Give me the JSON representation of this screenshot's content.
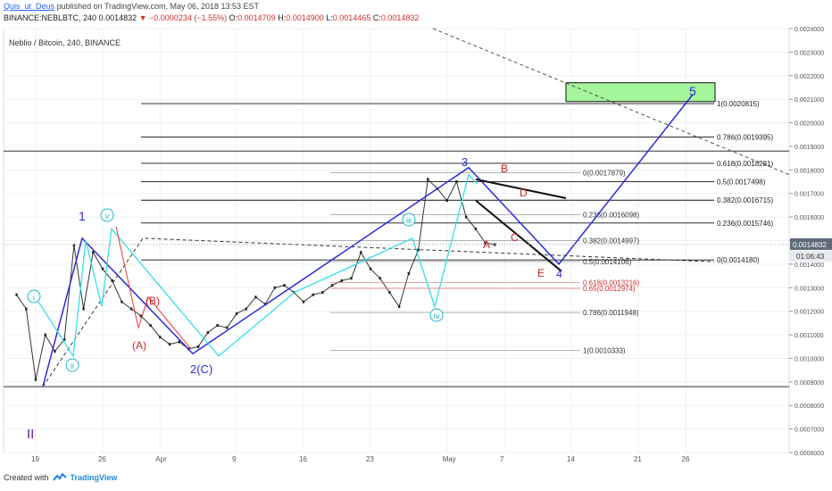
{
  "header": {
    "author": "Quis_ut_Deus",
    "published_text": "published on TradingView.com, May 06, 2018 13:53 EST",
    "symbol_line": "BINANCE:NEBLBTC, 240",
    "last": "0.0014832",
    "change": "▼ −0.0000234 (−1.55%)",
    "o_label": "O:",
    "o": "0.0014709",
    "h_label": "H:",
    "h": "0.0014900",
    "l_label": "L:",
    "l": "0.0014465",
    "c_label": "C:",
    "c": "0.0014832"
  },
  "footer": {
    "created_with": "Created with",
    "brand": "TradingView"
  },
  "colors": {
    "blue": "#2b2bd9",
    "cyan": "#35e0e8",
    "red": "#c62828",
    "black": "#111111",
    "green_zone": "#a5f59a",
    "grid": "#eef0f3"
  },
  "chart_data": {
    "type": "line",
    "title": "Neblio / Bitcoin, 240, BINANCE",
    "x_tick_labels": [
      "19",
      "26",
      "Apr",
      "9",
      "16",
      "23",
      "May",
      "7",
      "14",
      "21",
      "26"
    ],
    "y_tick_labels": [
      "0.0006000",
      "0.0007000",
      "0.0008000",
      "0.0009000",
      "0.0010000",
      "0.0011000",
      "0.0012000",
      "0.0013000",
      "0.0014000",
      "0.0015000",
      "0.0016000",
      "0.0017000",
      "0.0018000",
      "0.0019000",
      "0.0020000",
      "0.0021000",
      "0.0022000",
      "0.0023000",
      "0.0024000"
    ],
    "ylim": [
      0.0006,
      0.0024
    ],
    "last_price": "0.0014832",
    "countdown": "01:06:43",
    "price_series": [
      {
        "date": "Mar 17",
        "close": 0.00127
      },
      {
        "date": "Mar 18",
        "close": 0.00121
      },
      {
        "date": "Mar 19",
        "close": 0.00091
      },
      {
        "date": "Mar 20",
        "close": 0.0011
      },
      {
        "date": "Mar 21",
        "close": 0.00103
      },
      {
        "date": "Mar 22",
        "close": 0.00108
      },
      {
        "date": "Mar 23",
        "close": 0.00148
      },
      {
        "date": "Mar 24",
        "close": 0.00121
      },
      {
        "date": "Mar 25",
        "close": 0.00145
      },
      {
        "date": "Mar 26",
        "close": 0.00138
      },
      {
        "date": "Mar 27",
        "close": 0.00133
      },
      {
        "date": "Mar 28",
        "close": 0.00124
      },
      {
        "date": "Mar 29",
        "close": 0.00121
      },
      {
        "date": "Mar 30",
        "close": 0.00118
      },
      {
        "date": "Mar 31",
        "close": 0.00114
      },
      {
        "date": "Apr 1",
        "close": 0.00109
      },
      {
        "date": "Apr 2",
        "close": 0.00106
      },
      {
        "date": "Apr 3",
        "close": 0.00107
      },
      {
        "date": "Apr 4",
        "close": 0.00104
      },
      {
        "date": "Apr 5",
        "close": 0.00105
      },
      {
        "date": "Apr 6",
        "close": 0.00111
      },
      {
        "date": "Apr 7",
        "close": 0.00114
      },
      {
        "date": "Apr 8",
        "close": 0.00113
      },
      {
        "date": "Apr 9",
        "close": 0.00119
      },
      {
        "date": "Apr 10",
        "close": 0.00121
      },
      {
        "date": "Apr 11",
        "close": 0.00126
      },
      {
        "date": "Apr 12",
        "close": 0.00123
      },
      {
        "date": "Apr 13",
        "close": 0.0013
      },
      {
        "date": "Apr 14",
        "close": 0.00131
      },
      {
        "date": "Apr 15",
        "close": 0.00128
      },
      {
        "date": "Apr 16",
        "close": 0.00124
      },
      {
        "date": "Apr 17",
        "close": 0.00127
      },
      {
        "date": "Apr 18",
        "close": 0.00128
      },
      {
        "date": "Apr 19",
        "close": 0.00131
      },
      {
        "date": "Apr 20",
        "close": 0.00133
      },
      {
        "date": "Apr 21",
        "close": 0.00134
      },
      {
        "date": "Apr 22",
        "close": 0.00145
      },
      {
        "date": "Apr 23",
        "close": 0.00138
      },
      {
        "date": "Apr 24",
        "close": 0.00134
      },
      {
        "date": "Apr 25",
        "close": 0.00128
      },
      {
        "date": "Apr 26",
        "close": 0.00122
      },
      {
        "date": "Apr 27",
        "close": 0.00136
      },
      {
        "date": "Apr 28",
        "close": 0.00146
      },
      {
        "date": "Apr 29",
        "close": 0.00176
      },
      {
        "date": "Apr 30",
        "close": 0.00172
      },
      {
        "date": "May 1",
        "close": 0.00167
      },
      {
        "date": "May 2",
        "close": 0.00175
      },
      {
        "date": "May 3",
        "close": 0.0016
      },
      {
        "date": "May 4",
        "close": 0.00155
      },
      {
        "date": "May 5",
        "close": 0.00149
      },
      {
        "date": "May 6",
        "close": 0.001483
      }
    ],
    "fib_levels": [
      {
        "label": "1(0.0020815)",
        "value": 0.0020815,
        "style": "solid"
      },
      {
        "label": "0.786(0.0019395)",
        "value": 0.0019395,
        "style": "solid"
      },
      {
        "label": "0.618(0.0018281)",
        "value": 0.0018281,
        "style": "solid"
      },
      {
        "label": "0.5(0.0017498)",
        "value": 0.0017498,
        "style": "solid"
      },
      {
        "label": "0.382(0.0016715)",
        "value": 0.0016715,
        "style": "solid"
      },
      {
        "label": "0.236(0.0015746)",
        "value": 0.0015746,
        "style": "solid"
      },
      {
        "label": "0(0.0014180)",
        "value": 0.001418,
        "style": "solid"
      },
      {
        "label": "0(0.0017879)",
        "value": 0.0017879,
        "style": "thin"
      },
      {
        "label": "0.236(0.0016098)",
        "value": 0.0016098,
        "style": "thin"
      },
      {
        "label": "0.382(0.0014997)",
        "value": 0.0014997,
        "style": "thin"
      },
      {
        "label": "0.5(0.0014106)",
        "value": 0.0014106,
        "style": "thin"
      },
      {
        "label": "0.618(0.0013216)",
        "value": 0.0013216,
        "style": "red"
      },
      {
        "label": "0.65(0.0012974)",
        "value": 0.0012974,
        "style": "red"
      },
      {
        "label": "0.786(0.0011948)",
        "value": 0.0011948,
        "style": "thin"
      },
      {
        "label": "1(0.0010333)",
        "value": 0.0010333,
        "style": "thin"
      }
    ],
    "wave_labels": [
      {
        "text": "1",
        "color": "blue"
      },
      {
        "text": "2(C)",
        "color": "mixed"
      },
      {
        "text": "3",
        "color": "blue"
      },
      {
        "text": "4",
        "color": "blue"
      },
      {
        "text": "5",
        "color": "blue"
      },
      {
        "text": "II",
        "color": "purple"
      },
      {
        "text": "i",
        "color": "cyan"
      },
      {
        "text": "ii",
        "color": "cyan"
      },
      {
        "text": "iii",
        "color": "cyan"
      },
      {
        "text": "iv",
        "color": "cyan"
      },
      {
        "text": "v",
        "color": "cyan"
      },
      {
        "text": "(A)",
        "color": "red"
      },
      {
        "text": "(B)",
        "color": "red"
      },
      {
        "text": "A",
        "color": "red"
      },
      {
        "text": "B",
        "color": "red"
      },
      {
        "text": "C",
        "color": "red"
      },
      {
        "text": "D",
        "color": "red"
      },
      {
        "text": "E",
        "color": "red"
      }
    ]
  }
}
